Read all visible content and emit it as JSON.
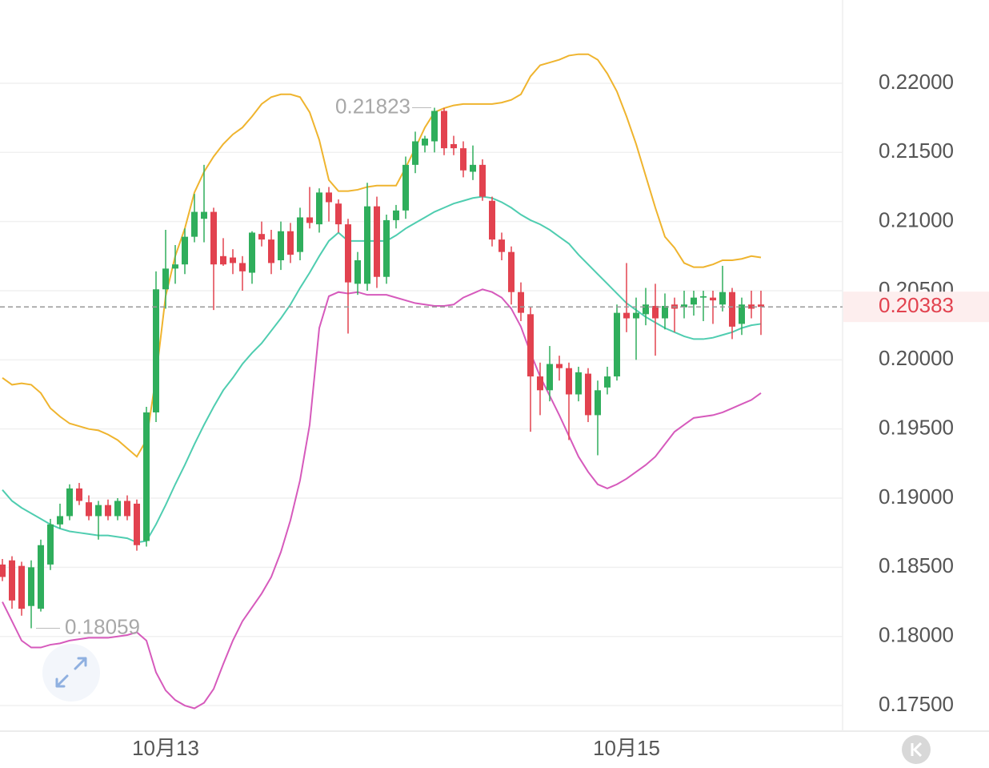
{
  "chart_data": {
    "type": "candlestick",
    "categories": [
      null,
      null,
      null,
      null,
      null,
      null,
      null,
      null,
      null,
      null,
      null,
      null,
      null,
      null,
      null,
      null,
      null,
      "10月13",
      null,
      null,
      null,
      null,
      null,
      null,
      null,
      null,
      null,
      null,
      null,
      null,
      null,
      null,
      null,
      null,
      null,
      null,
      null,
      null,
      null,
      null,
      null,
      null,
      null,
      null,
      null,
      null,
      null,
      null,
      null,
      null,
      null,
      null,
      null,
      null,
      null,
      null,
      null,
      null,
      null,
      null,
      null,
      null,
      null,
      null,
      null,
      "10月15",
      null,
      null,
      null,
      null,
      null,
      null,
      null,
      null,
      null,
      null,
      null,
      null,
      null,
      null
    ],
    "open": [
      0.1852,
      0.1855,
      0.1851,
      0.1822,
      0.182,
      0.1852,
      0.1881,
      0.1887,
      0.1907,
      0.1897,
      0.1887,
      0.1895,
      0.1887,
      0.1898,
      0.1896,
      0.1869,
      0.1962,
      0.2051,
      0.2066,
      0.2069,
      0.2089,
      0.2102,
      0.2107,
      0.2075,
      0.2074,
      0.207,
      0.2063,
      0.2091,
      0.2087,
      0.2072,
      0.2093,
      0.2078,
      0.2103,
      0.2098,
      0.2121,
      0.2113,
      0.2098,
      0.2055,
      0.2055,
      0.2111,
      0.206,
      0.2101,
      0.2108,
      0.2141,
      0.2155,
      0.2158,
      0.218,
      0.2156,
      0.2153,
      0.2136,
      0.2141,
      0.2115,
      0.2087,
      0.2078,
      0.2049,
      0.2033,
      0.1988,
      0.1978,
      0.1997,
      0.1994,
      0.1975,
      0.199,
      0.196,
      0.198,
      0.1988,
      0.2034,
      0.203,
      0.2033,
      0.2039,
      0.203,
      0.204,
      0.2038,
      0.204,
      0.2045,
      0.2045,
      0.204,
      0.2049,
      0.2026,
      0.204,
      0.204
    ],
    "high": [
      0.1856,
      0.1858,
      0.1854,
      0.1855,
      0.187,
      0.1885,
      0.1896,
      0.191,
      0.1911,
      0.1902,
      0.1898,
      0.1899,
      0.19,
      0.1902,
      0.1899,
      0.1966,
      0.2064,
      0.2094,
      0.2083,
      0.2095,
      0.212,
      0.2141,
      0.211,
      0.2088,
      0.208,
      0.2075,
      0.2093,
      0.21,
      0.2094,
      0.21,
      0.2099,
      0.211,
      0.2125,
      0.2124,
      0.2125,
      0.2116,
      0.2102,
      0.2078,
      0.2128,
      0.2118,
      0.2105,
      0.2112,
      0.2147,
      0.2165,
      0.2162,
      0.21823,
      0.2182,
      0.2162,
      0.2158,
      0.2155,
      0.2145,
      0.2118,
      0.2092,
      0.2082,
      0.2056,
      0.2038,
      0.1998,
      0.201,
      0.2003,
      0.1998,
      0.1995,
      0.1994,
      0.1985,
      0.1995,
      0.204,
      0.207,
      0.2045,
      0.2052,
      0.2055,
      0.2048,
      0.2045,
      0.205,
      0.205,
      0.205,
      0.205,
      0.2068,
      0.2052,
      0.2045,
      0.205,
      0.205
    ],
    "low": [
      0.184,
      0.182,
      0.1815,
      0.18059,
      0.1818,
      0.1848,
      0.1878,
      0.1884,
      0.1895,
      0.1884,
      0.187,
      0.1884,
      0.1884,
      0.1884,
      0.1862,
      0.1865,
      0.1955,
      0.2037,
      0.2055,
      0.2062,
      0.2085,
      0.2085,
      0.2036,
      0.2068,
      0.2062,
      0.205,
      0.2055,
      0.2082,
      0.2062,
      0.2065,
      0.207,
      0.2072,
      0.2095,
      0.2092,
      0.21,
      0.2092,
      0.2019,
      0.2047,
      0.205,
      0.2052,
      0.2055,
      0.2095,
      0.2102,
      0.2135,
      0.215,
      0.215,
      0.2148,
      0.2148,
      0.2132,
      0.213,
      0.2115,
      0.2082,
      0.2072,
      0.204,
      0.2028,
      0.1948,
      0.196,
      0.197,
      0.1985,
      0.1942,
      0.197,
      0.1955,
      0.1931,
      0.1975,
      0.1985,
      0.202,
      0.2,
      0.2025,
      0.2003,
      0.2022,
      0.202,
      0.203,
      0.2032,
      0.2028,
      0.2026,
      0.2035,
      0.2015,
      0.2018,
      0.203,
      0.2018
    ],
    "close": [
      0.1843,
      0.1826,
      0.182,
      0.185,
      0.1866,
      0.1881,
      0.1887,
      0.1907,
      0.1898,
      0.1887,
      0.1895,
      0.1887,
      0.1898,
      0.1887,
      0.1866,
      0.1962,
      0.2051,
      0.2066,
      0.2069,
      0.2089,
      0.2107,
      0.2107,
      0.2069,
      0.2069,
      0.207,
      0.2064,
      0.2092,
      0.2087,
      0.207,
      0.2093,
      0.2076,
      0.2103,
      0.2099,
      0.2121,
      0.2114,
      0.2098,
      0.2056,
      0.2072,
      0.2111,
      0.206,
      0.2101,
      0.2108,
      0.2141,
      0.2158,
      0.216,
      0.218,
      0.2153,
      0.2153,
      0.2137,
      0.2141,
      0.2118,
      0.2087,
      0.2078,
      0.2049,
      0.2034,
      0.1988,
      0.1978,
      0.1997,
      0.1994,
      0.1975,
      0.1991,
      0.196,
      0.1978,
      0.1988,
      0.2034,
      0.203,
      0.2034,
      0.204,
      0.203,
      0.2039,
      0.2037,
      0.204,
      0.2045,
      0.2046,
      0.2043,
      0.2049,
      0.2024,
      0.204,
      0.2037,
      0.20383
    ],
    "up_color": "#2fae5c",
    "down_color": "#e2424f",
    "lines": [
      {
        "color": "#efb42e",
        "values": [
          0.1987,
          0.1982,
          0.1983,
          0.1982,
          0.1976,
          0.1965,
          0.1959,
          0.1954,
          0.1952,
          0.195,
          0.1949,
          0.1946,
          0.1942,
          0.1936,
          0.193,
          0.1942,
          0.1988,
          0.2046,
          0.2075,
          0.2095,
          0.2121,
          0.2136,
          0.2147,
          0.2156,
          0.2163,
          0.2168,
          0.2176,
          0.2185,
          0.219,
          0.2192,
          0.2192,
          0.219,
          0.2179,
          0.2159,
          0.213,
          0.2122,
          0.2122,
          0.2123,
          0.2125,
          0.2126,
          0.2126,
          0.2126,
          0.2139,
          0.2153,
          0.2168,
          0.2179,
          0.2182,
          0.2184,
          0.2185,
          0.2185,
          0.2185,
          0.2185,
          0.2186,
          0.2188,
          0.2192,
          0.2205,
          0.2213,
          0.2215,
          0.2217,
          0.222,
          0.2221,
          0.2221,
          0.2217,
          0.2207,
          0.2194,
          0.2176,
          0.2156,
          0.2133,
          0.211,
          0.2089,
          0.2081,
          0.207,
          0.2067,
          0.2067,
          0.2069,
          0.2072,
          0.2072,
          0.2073,
          0.2075,
          0.2074
        ]
      },
      {
        "color": "#4fcdb0",
        "values": [
          0.1906,
          0.1898,
          0.1893,
          0.1889,
          0.1885,
          0.1881,
          0.1878,
          0.1876,
          0.1875,
          0.1874,
          0.1873,
          0.1873,
          0.1872,
          0.1871,
          0.1868,
          0.1869,
          0.1881,
          0.1895,
          0.191,
          0.1924,
          0.1939,
          0.1953,
          0.1966,
          0.1978,
          0.1987,
          0.1997,
          0.2005,
          0.2012,
          0.2021,
          0.203,
          0.204,
          0.2052,
          0.2063,
          0.2075,
          0.2086,
          0.2092,
          0.2086,
          0.2086,
          0.2086,
          0.2086,
          0.2086,
          0.209,
          0.2095,
          0.2099,
          0.2103,
          0.2107,
          0.211,
          0.2113,
          0.2115,
          0.2117,
          0.2118,
          0.2117,
          0.2114,
          0.211,
          0.2105,
          0.2101,
          0.2098,
          0.2094,
          0.2089,
          0.2084,
          0.2076,
          0.2069,
          0.2062,
          0.2055,
          0.2048,
          0.2041,
          0.2036,
          0.2031,
          0.2027,
          0.2023,
          0.202,
          0.2017,
          0.2015,
          0.2015,
          0.2016,
          0.2018,
          0.202,
          0.2023,
          0.2025,
          0.2026
        ]
      },
      {
        "color": "#d65abc",
        "values": [
          0.1825,
          0.1811,
          0.1797,
          0.1792,
          0.1792,
          0.1794,
          0.1795,
          0.1797,
          0.1798,
          0.1799,
          0.1799,
          0.1799,
          0.18,
          0.1801,
          0.1803,
          0.1797,
          0.1774,
          0.1761,
          0.1754,
          0.175,
          0.1748,
          0.1752,
          0.1762,
          0.178,
          0.1797,
          0.1811,
          0.1821,
          0.1831,
          0.1843,
          0.1861,
          0.1884,
          0.1913,
          0.1953,
          0.2023,
          0.2046,
          0.2049,
          0.2048,
          0.2049,
          0.2047,
          0.2047,
          0.2047,
          0.2045,
          0.2043,
          0.2041,
          0.204,
          0.2039,
          0.2039,
          0.204,
          0.2045,
          0.2048,
          0.2051,
          0.2049,
          0.2045,
          0.2037,
          0.2024,
          0.2005,
          0.1988,
          0.1974,
          0.196,
          0.1945,
          0.193,
          0.1919,
          0.191,
          0.1907,
          0.191,
          0.1914,
          0.1919,
          0.1924,
          0.193,
          0.1939,
          0.1948,
          0.1953,
          0.1958,
          0.1959,
          0.196,
          0.1962,
          0.1965,
          0.1968,
          0.1971,
          0.1976
        ]
      }
    ],
    "ylim": [
      0.17315,
      0.22602
    ],
    "yticks": [
      {
        "value": 0.175,
        "label": "0.17500"
      },
      {
        "value": 0.18,
        "label": "0.18000"
      },
      {
        "value": 0.185,
        "label": "0.18500"
      },
      {
        "value": 0.19,
        "label": "0.19000"
      },
      {
        "value": 0.195,
        "label": "0.19500"
      },
      {
        "value": 0.2,
        "label": "0.20000"
      },
      {
        "value": 0.205,
        "label": "0.20500"
      },
      {
        "value": 0.21,
        "label": "0.21000"
      },
      {
        "value": 0.215,
        "label": "0.21500"
      },
      {
        "value": 0.22,
        "label": "0.22000"
      }
    ],
    "grid": true,
    "annotations": [
      {
        "value": 0.21823,
        "label": "0.21823"
      },
      {
        "value": 0.18059,
        "label": "0.18059"
      }
    ],
    "last_price": {
      "value": 0.20383,
      "label": "0.20383"
    }
  }
}
